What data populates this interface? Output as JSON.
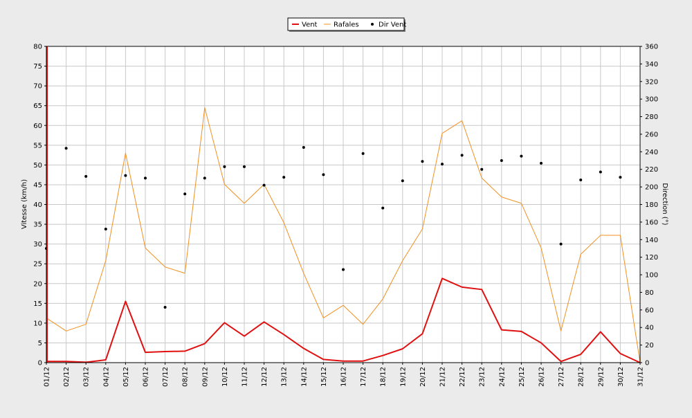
{
  "chart_data": {
    "type": "line",
    "title": "",
    "categories": [
      "01/12",
      "02/12",
      "03/12",
      "04/12",
      "05/12",
      "06/12",
      "07/12",
      "08/12",
      "09/12",
      "10/12",
      "11/12",
      "12/12",
      "13/12",
      "14/12",
      "15/12",
      "16/12",
      "17/12",
      "18/12",
      "19/12",
      "20/12",
      "21/12",
      "22/12",
      "23/12",
      "24/12",
      "25/12",
      "26/12",
      "27/12",
      "28/12",
      "29/12",
      "30/12",
      "31/12"
    ],
    "ylabel": "Vitesse (km/h)",
    "ylim": [
      0,
      80
    ],
    "yticks": [
      "0",
      "5",
      "10",
      "15",
      "20",
      "25",
      "30",
      "35",
      "40",
      "45",
      "50",
      "55",
      "60",
      "65",
      "70",
      "75",
      "80"
    ],
    "y2label": "Direction (°)",
    "y2lim": [
      0,
      360
    ],
    "y2ticks": [
      "0",
      "20",
      "40",
      "60",
      "80",
      "100",
      "120",
      "140",
      "160",
      "180",
      "200",
      "220",
      "240",
      "260",
      "280",
      "300",
      "320",
      "340",
      "360"
    ],
    "grid": true,
    "legend_position": "top-center",
    "series": [
      {
        "name": "Vent",
        "axis": "left",
        "kind": "line",
        "color": "#e01010",
        "values": [
          0.3,
          0.3,
          0.1,
          0.7,
          15.5,
          2.6,
          2.8,
          2.9,
          4.8,
          10.1,
          6.7,
          10.3,
          7.1,
          3.6,
          0.8,
          0.4,
          0.4,
          1.8,
          3.5,
          7.3,
          21.3,
          19.1,
          18.5,
          8.3,
          7.9,
          5.0,
          0.3,
          2.1,
          7.8,
          2.3,
          0.0
        ]
      },
      {
        "name": "Rafales",
        "axis": "left",
        "kind": "line",
        "color": "#f09020",
        "values": [
          11.3,
          8.0,
          9.7,
          25.8,
          53.0,
          29.0,
          24.2,
          22.6,
          64.5,
          45.1,
          40.3,
          45.1,
          35.4,
          22.6,
          11.3,
          14.5,
          9.7,
          16.1,
          25.8,
          33.8,
          58.0,
          61.2,
          46.7,
          41.9,
          40.3,
          29.0,
          8.0,
          27.4,
          32.2,
          32.2,
          0.0
        ]
      },
      {
        "name": "Dir Vent",
        "axis": "right",
        "kind": "scatter",
        "color": "#000000",
        "values": [
          130,
          244,
          212,
          152,
          213,
          210,
          63,
          192,
          210,
          223,
          223,
          202,
          211,
          245,
          214,
          106,
          238,
          176,
          207,
          229,
          226,
          236,
          220,
          230,
          235,
          227,
          135,
          208,
          217,
          211,
          null
        ]
      }
    ]
  }
}
